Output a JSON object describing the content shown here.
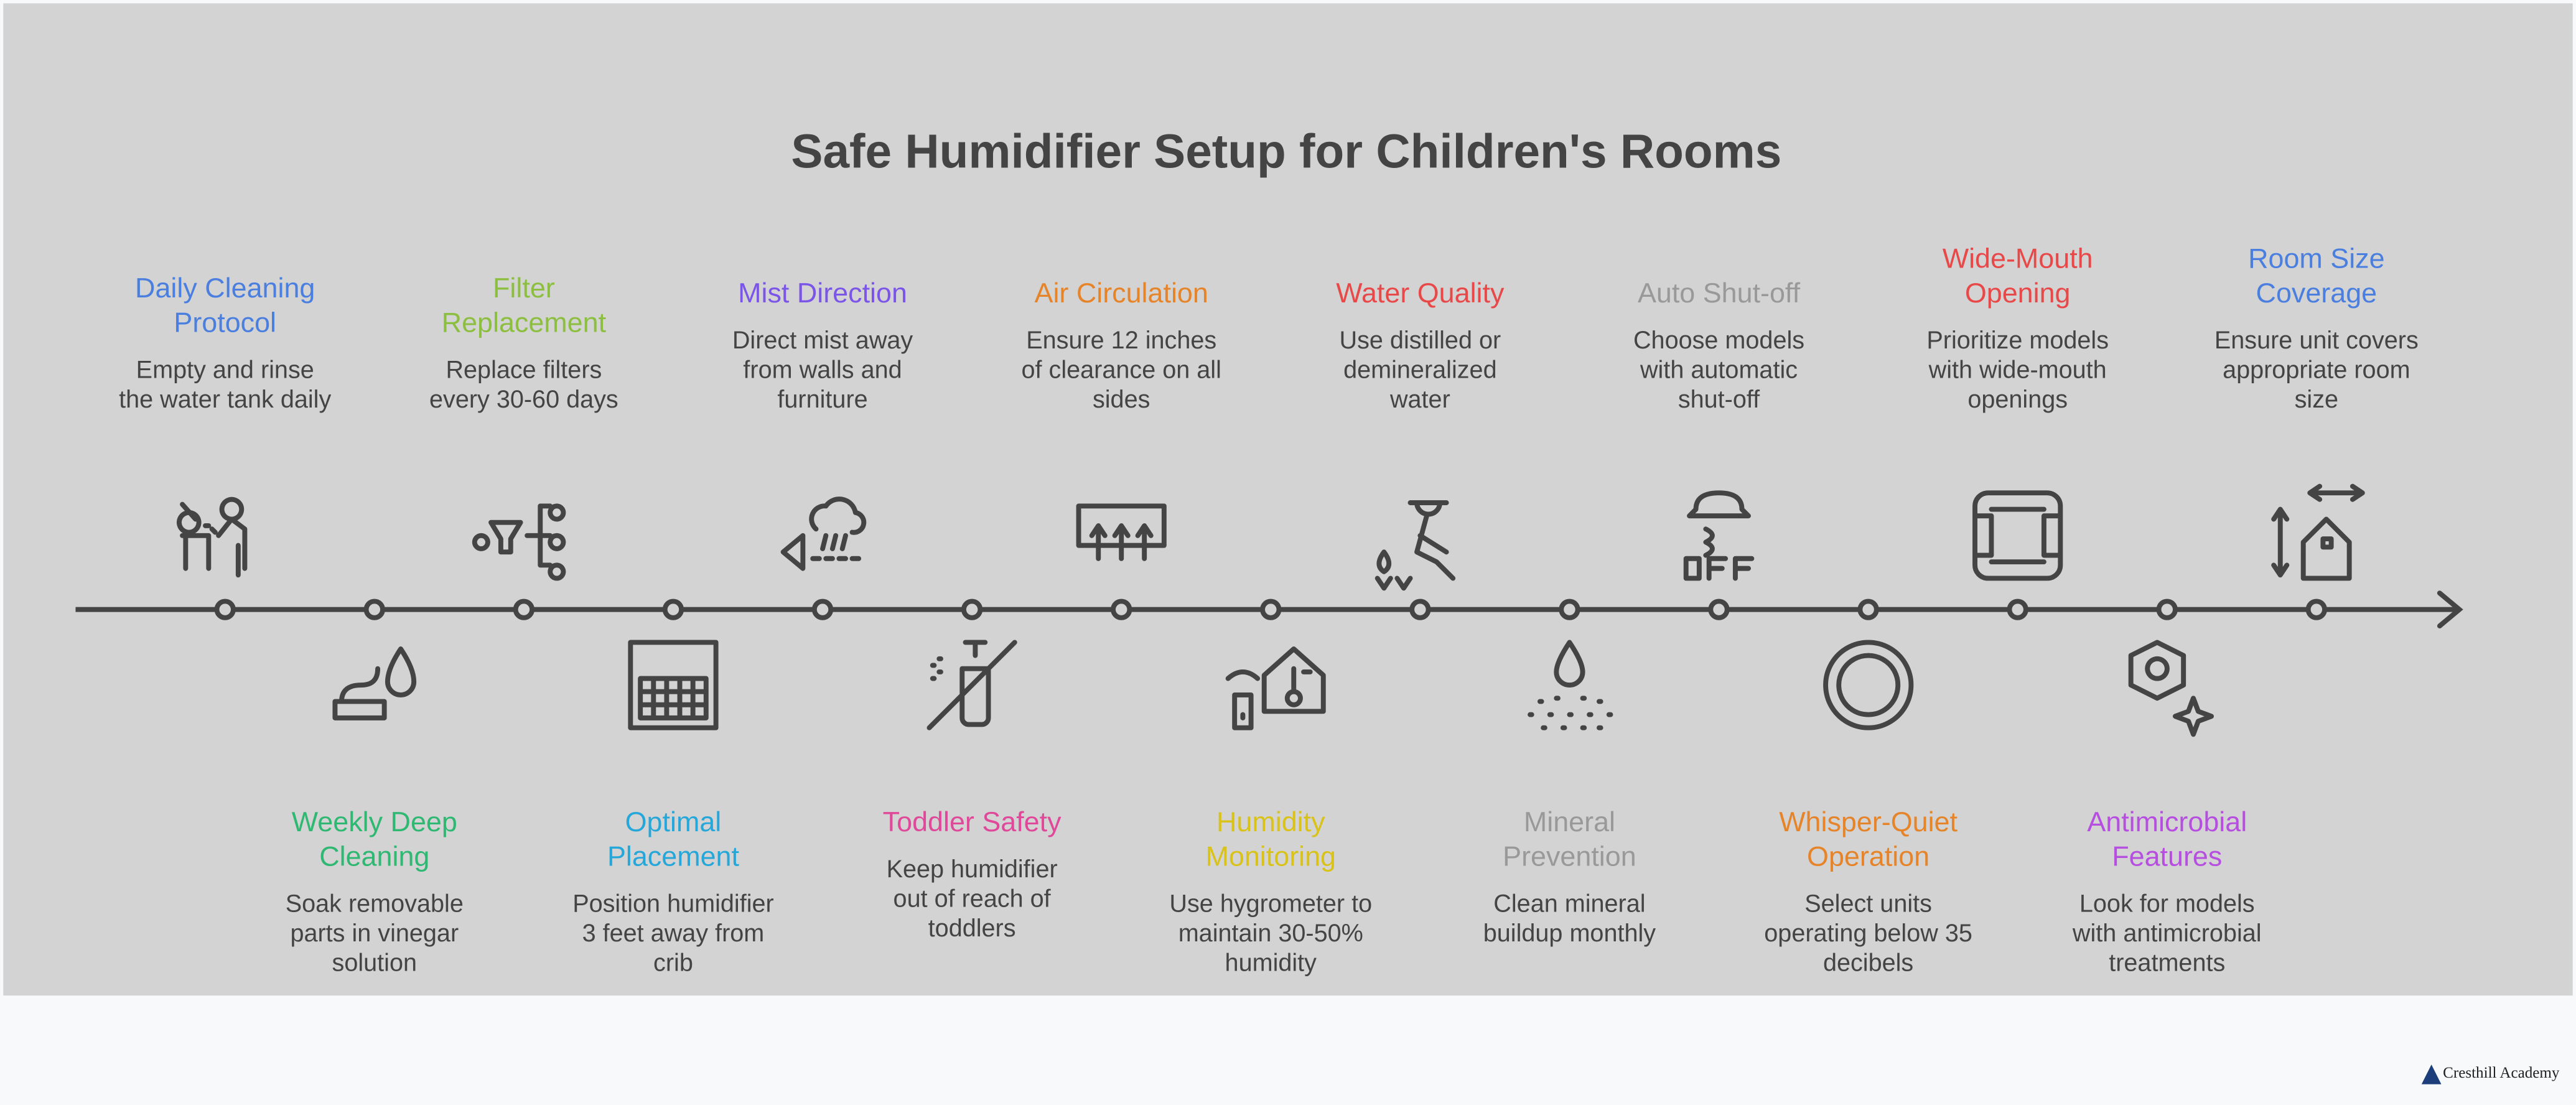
{
  "title": "Safe Humidifier Setup for Children's Rooms",
  "items": [
    {
      "title_lines": [
        "Daily Cleaning",
        "Protocol"
      ],
      "description_lines": [
        "Empty and rinse",
        "the water tank daily"
      ],
      "color": "#4a7fe0"
    },
    {
      "title_lines": [
        "Weekly Deep",
        "Cleaning"
      ],
      "description_lines": [
        "Soak removable",
        "parts in vinegar",
        "solution"
      ],
      "color": "#2eb872"
    },
    {
      "title_lines": [
        "Filter",
        "Replacement"
      ],
      "description_lines": [
        "Replace filters",
        "every 30-60 days"
      ],
      "color": "#8cbf3f"
    },
    {
      "title_lines": [
        "Optimal",
        "Placement"
      ],
      "description_lines": [
        "Position humidifier",
        "3 feet away from",
        "crib"
      ],
      "color": "#26a7d9"
    },
    {
      "title_lines": [
        "Mist Direction"
      ],
      "description_lines": [
        "Direct mist away",
        "from walls and",
        "furniture"
      ],
      "color": "#7b55e8"
    },
    {
      "title_lines": [
        "Toddler Safety"
      ],
      "description_lines": [
        "Keep humidifier",
        "out of reach of",
        "toddlers"
      ],
      "color": "#e0489a"
    },
    {
      "title_lines": [
        "Air Circulation"
      ],
      "description_lines": [
        "Ensure 12 inches",
        "of clearance on all",
        "sides"
      ],
      "color": "#e6842a"
    },
    {
      "title_lines": [
        "Humidity",
        "Monitoring"
      ],
      "description_lines": [
        "Use hygrometer to",
        "maintain 30-50%",
        "humidity"
      ],
      "color": "#d9c21a"
    },
    {
      "title_lines": [
        "Water Quality"
      ],
      "description_lines": [
        "Use distilled or",
        "demineralized",
        "water"
      ],
      "color": "#e84848"
    },
    {
      "title_lines": [
        "Mineral",
        "Prevention"
      ],
      "description_lines": [
        "Clean mineral",
        "buildup monthly"
      ],
      "color": "#999999"
    },
    {
      "title_lines": [
        "Auto Shut-off"
      ],
      "description_lines": [
        "Choose models",
        "with automatic",
        "shut-off"
      ],
      "color": "#999999"
    },
    {
      "title_lines": [
        "Whisper-Quiet",
        "Operation"
      ],
      "description_lines": [
        "Select units",
        "operating below 35",
        "decibels"
      ],
      "color": "#e6842a"
    },
    {
      "title_lines": [
        "Wide-Mouth",
        "Opening"
      ],
      "description_lines": [
        "Prioritize models",
        "with wide-mouth",
        "openings"
      ],
      "color": "#e84848"
    },
    {
      "title_lines": [
        "Antimicrobial",
        "Features"
      ],
      "description_lines": [
        "Look for models",
        "with antimicrobial",
        "treatments"
      ],
      "color": "#b64ee0"
    },
    {
      "title_lines": [
        "Room Size",
        "Coverage"
      ],
      "description_lines": [
        "Ensure unit covers",
        "appropriate room",
        "size"
      ],
      "color": "#4a7fe0"
    }
  ],
  "footer": {
    "brand": "Cresthill Academy"
  }
}
